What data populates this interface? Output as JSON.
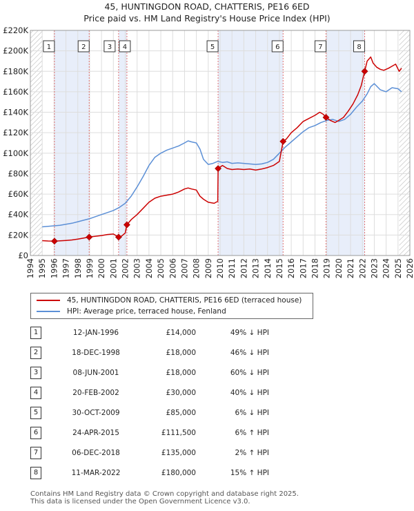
{
  "title_line1": "45, HUNTINGDON ROAD, CHATTERIS, PE16 6ED",
  "title_line2": "Price paid vs. HM Land Registry's House Price Index (HPI)",
  "colors": {
    "property": "#cc0000",
    "hpi": "#5b8fd6",
    "shade": "#e8eefa",
    "grid": "#dddddd"
  },
  "legend": {
    "property_label": "45, HUNTINGDON ROAD, CHATTERIS, PE16 6ED (terraced house)",
    "hpi_label": "HPI: Average price, terraced house, Fenland"
  },
  "sales": [
    {
      "num": "1",
      "date": "12-JAN-1996",
      "price": "£14,000",
      "hpi": "49% ↓ HPI"
    },
    {
      "num": "2",
      "date": "18-DEC-1998",
      "price": "£18,000",
      "hpi": "46% ↓ HPI"
    },
    {
      "num": "3",
      "date": "08-JUN-2001",
      "price": "£18,000",
      "hpi": "60% ↓ HPI"
    },
    {
      "num": "4",
      "date": "20-FEB-2002",
      "price": "£30,000",
      "hpi": "40% ↓ HPI"
    },
    {
      "num": "5",
      "date": "30-OCT-2009",
      "price": "£85,000",
      "hpi": "6% ↓ HPI"
    },
    {
      "num": "6",
      "date": "24-APR-2015",
      "price": "£111,500",
      "hpi": "6% ↑ HPI"
    },
    {
      "num": "7",
      "date": "06-DEC-2018",
      "price": "£135,000",
      "hpi": "2% ↑ HPI"
    },
    {
      "num": "8",
      "date": "11-MAR-2022",
      "price": "£180,000",
      "hpi": "15% ↑ HPI"
    }
  ],
  "footer_line1": "Contains HM Land Registry data © Crown copyright and database right 2025.",
  "footer_line2": "This data is licensed under the Open Government Licence v3.0.",
  "chart_data": {
    "type": "line",
    "title": "45, HUNTINGDON ROAD, CHATTERIS, PE16 6ED — Price paid vs. HM Land Registry's House Price Index (HPI)",
    "xlabel": "",
    "ylabel": "",
    "xlim": [
      1994,
      2026
    ],
    "ylim": [
      0,
      220000
    ],
    "x_ticks": [
      1994,
      1995,
      1996,
      1997,
      1998,
      1999,
      2000,
      2001,
      2002,
      2003,
      2004,
      2005,
      2006,
      2007,
      2008,
      2009,
      2010,
      2011,
      2012,
      2013,
      2014,
      2015,
      2016,
      2017,
      2018,
      2019,
      2020,
      2021,
      2022,
      2023,
      2024,
      2025,
      2026
    ],
    "y_ticks": [
      0,
      20000,
      40000,
      60000,
      80000,
      100000,
      120000,
      140000,
      160000,
      180000,
      200000,
      220000
    ],
    "y_tick_labels": [
      "£0",
      "£20K",
      "£40K",
      "£60K",
      "£80K",
      "£100K",
      "£120K",
      "£140K",
      "£160K",
      "£180K",
      "£200K",
      "£220K"
    ],
    "grid": true,
    "hatched_ranges": [
      [
        1994,
        1995
      ],
      [
        2025.1,
        2026
      ]
    ],
    "shaded_ranges": [
      [
        1996.03,
        1998.96
      ],
      [
        2001.44,
        2002.14
      ],
      [
        2009.83,
        2015.31
      ],
      [
        2018.93,
        2022.19
      ]
    ],
    "sale_markers": [
      {
        "label": "1",
        "x": 1996.03,
        "y": 14000
      },
      {
        "label": "2",
        "x": 1998.96,
        "y": 18000
      },
      {
        "label": "3",
        "x": 2001.44,
        "y": 18000
      },
      {
        "label": "4",
        "x": 2002.14,
        "y": 30000
      },
      {
        "label": "5",
        "x": 2009.83,
        "y": 85000
      },
      {
        "label": "6",
        "x": 2015.31,
        "y": 111500
      },
      {
        "label": "7",
        "x": 2018.93,
        "y": 135000
      },
      {
        "label": "8",
        "x": 2022.19,
        "y": 180000
      }
    ],
    "series": [
      {
        "name": "45, HUNTINGDON ROAD, CHATTERIS, PE16 6ED (terraced house)",
        "x": [
          1995.0,
          1995.5,
          1996.03,
          1996.5,
          1997,
          1997.5,
          1998,
          1998.5,
          1998.96,
          1999.5,
          2000,
          2000.5,
          2001,
          2001.44,
          2001.7,
          2002.0,
          2002.14,
          2002.5,
          2003,
          2003.5,
          2004,
          2004.5,
          2005,
          2005.5,
          2006,
          2006.5,
          2007,
          2007.3,
          2007.6,
          2008,
          2008.3,
          2008.6,
          2009,
          2009.5,
          2009.8,
          2009.83,
          2010.2,
          2010.6,
          2011,
          2011.5,
          2012,
          2012.5,
          2013,
          2013.5,
          2014,
          2014.5,
          2015,
          2015.31,
          2015.6,
          2016,
          2016.5,
          2017,
          2017.5,
          2018,
          2018.4,
          2018.7,
          2018.93,
          2019.3,
          2019.7,
          2020,
          2020.4,
          2020.8,
          2021.2,
          2021.6,
          2021.9,
          2022.19,
          2022.4,
          2022.7,
          2022.9,
          2023.2,
          2023.5,
          2023.8,
          2024.2,
          2024.5,
          2024.8,
          2025.1,
          2025.3
        ],
        "y": [
          14500,
          14200,
          14000,
          14300,
          14700,
          15200,
          16000,
          17000,
          18000,
          18800,
          19500,
          20500,
          21000,
          18000,
          19000,
          22000,
          30000,
          35000,
          40000,
          46000,
          52000,
          56000,
          58000,
          59000,
          60000,
          62000,
          65000,
          66000,
          65000,
          64000,
          58000,
          55000,
          52000,
          51000,
          53000,
          85000,
          88000,
          85000,
          84000,
          84500,
          84000,
          84500,
          83500,
          84500,
          86000,
          88000,
          92000,
          111500,
          114000,
          120000,
          125000,
          131000,
          134000,
          137000,
          140000,
          138000,
          135000,
          132000,
          130000,
          132000,
          135000,
          141000,
          148000,
          157000,
          166000,
          180000,
          190000,
          194000,
          188000,
          184000,
          182000,
          181000,
          183000,
          185000,
          187000,
          180000,
          183000
        ]
      },
      {
        "name": "HPI: Average price, terraced house, Fenland",
        "x": [
          1995.0,
          1995.5,
          1996,
          1996.5,
          1997,
          1997.5,
          1998,
          1998.5,
          1999,
          1999.5,
          2000,
          2000.5,
          2001,
          2001.5,
          2002,
          2002.5,
          2003,
          2003.5,
          2004,
          2004.5,
          2005,
          2005.5,
          2006,
          2006.5,
          2007,
          2007.3,
          2007.6,
          2008,
          2008.3,
          2008.6,
          2009,
          2009.4,
          2009.8,
          2010.2,
          2010.6,
          2011,
          2011.5,
          2012,
          2012.5,
          2013,
          2013.5,
          2014,
          2014.5,
          2015,
          2015.5,
          2016,
          2016.5,
          2017,
          2017.5,
          2018,
          2018.5,
          2019,
          2019.5,
          2020,
          2020.5,
          2021,
          2021.5,
          2022,
          2022.4,
          2022.7,
          2023,
          2023.5,
          2024,
          2024.5,
          2025,
          2025.3
        ],
        "y": [
          28000,
          28500,
          29000,
          29500,
          30500,
          31500,
          33000,
          34500,
          36000,
          38000,
          40000,
          42000,
          44000,
          47000,
          51000,
          58000,
          67000,
          77000,
          88000,
          96000,
          100000,
          103000,
          105000,
          107000,
          110000,
          112000,
          111000,
          110000,
          104000,
          94000,
          89000,
          90000,
          92000,
          91000,
          91500,
          90000,
          90500,
          90000,
          89500,
          89000,
          89500,
          91000,
          94000,
          100000,
          106000,
          111000,
          116000,
          121000,
          125000,
          127000,
          130000,
          132000,
          133000,
          131000,
          133000,
          138000,
          145000,
          151000,
          158000,
          165000,
          168000,
          162000,
          160000,
          164000,
          163000,
          160000
        ]
      }
    ]
  }
}
